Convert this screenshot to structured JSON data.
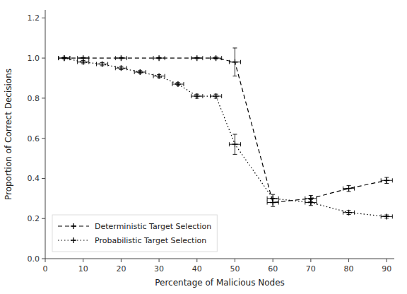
{
  "chart_data": {
    "type": "line",
    "xlabel": "Percentage of Malicious Nodes",
    "ylabel": "Proportion of Correct Decisions",
    "series": [
      {
        "name": "Deterministic Target Selection",
        "color": "black",
        "line_style": "dashed",
        "marker": "plus",
        "x": [
          5,
          10,
          20,
          30,
          40,
          45,
          50,
          60,
          70,
          80,
          90
        ],
        "values": [
          1.0,
          1.0,
          1.0,
          1.0,
          1.0,
          1.0,
          0.98,
          0.28,
          0.3,
          0.35,
          0.39
        ],
        "yerr": [
          0.003,
          0.003,
          0.003,
          0.003,
          0.003,
          0.005,
          0.07,
          0.02,
          0.015,
          0.015,
          0.015
        ],
        "xerr": [
          1.5,
          1.5,
          1.5,
          1.5,
          1.5,
          1.5,
          1.5,
          1.5,
          1.5,
          1.5,
          1.5
        ]
      },
      {
        "name": "Probabilistic Target Selection",
        "color": "black",
        "line_style": "dotted",
        "marker": "plus",
        "x": [
          5,
          10,
          15,
          20,
          25,
          30,
          35,
          40,
          45,
          50,
          60,
          70,
          80,
          90
        ],
        "values": [
          1.0,
          0.98,
          0.97,
          0.95,
          0.93,
          0.91,
          0.87,
          0.81,
          0.81,
          0.57,
          0.3,
          0.28,
          0.23,
          0.21
        ],
        "yerr": [
          0.003,
          0.008,
          0.008,
          0.008,
          0.008,
          0.008,
          0.008,
          0.01,
          0.01,
          0.05,
          0.02,
          0.015,
          0.01,
          0.008
        ],
        "xerr": [
          1.5,
          1.5,
          1.5,
          1.5,
          1.5,
          1.5,
          1.5,
          1.5,
          1.5,
          1.5,
          1.5,
          1.5,
          1.5,
          1.5
        ]
      }
    ],
    "xlim": [
      0,
      92
    ],
    "ylim": [
      0,
      1.24
    ],
    "xticks": [
      0,
      10,
      20,
      30,
      40,
      50,
      60,
      70,
      80,
      90
    ],
    "yticks": [
      {
        "value": 0,
        "label": "0.0"
      },
      0.2,
      0.4,
      0.6,
      0.8,
      {
        "value": 1,
        "label": "1.0"
      },
      1.2
    ],
    "legend": "lower left",
    "grid": false
  }
}
